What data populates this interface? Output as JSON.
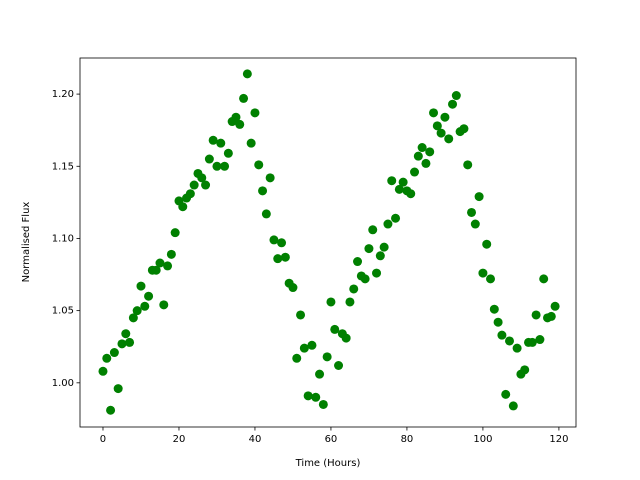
{
  "chart_data": {
    "type": "scatter",
    "x_label": "Time (Hours)",
    "y_label": "Normalised Flux",
    "color": "#008000",
    "xlim": [
      -6.05,
      124.5
    ],
    "ylim": [
      0.9694,
      1.225
    ],
    "xticks": [
      0,
      20,
      40,
      60,
      80,
      100,
      120
    ],
    "yticks": [
      {
        "value": 1.0,
        "label": "1.00"
      },
      {
        "value": 1.05,
        "label": "1.05"
      },
      {
        "value": 1.1,
        "label": "1.10"
      },
      {
        "value": 1.15,
        "label": "1.15"
      },
      {
        "value": 1.2,
        "label": "1.20"
      }
    ],
    "x": [
      0,
      1,
      2,
      3,
      4,
      5,
      6,
      7,
      8,
      9,
      10,
      11,
      12,
      13,
      14,
      15,
      16,
      17,
      18,
      19,
      20,
      21,
      22,
      23,
      24,
      25,
      26,
      27,
      28,
      29,
      30,
      31,
      32,
      33,
      34,
      35,
      36,
      37,
      38,
      39,
      40,
      41,
      42,
      43,
      44,
      45,
      46,
      47,
      48,
      49,
      50,
      51,
      52,
      53,
      54,
      55,
      56,
      57,
      58,
      59,
      60,
      61,
      62,
      63,
      64,
      65,
      66,
      67,
      68,
      69,
      70,
      71,
      72,
      73,
      74,
      75,
      76,
      77,
      78,
      79,
      80,
      81,
      82,
      83,
      84,
      85,
      86,
      87,
      88,
      89,
      90,
      91,
      92,
      93,
      94,
      95,
      96,
      97,
      98,
      99,
      100,
      101,
      102,
      103,
      104,
      105,
      106,
      107,
      108,
      109,
      110,
      111,
      112,
      113,
      114,
      115,
      116,
      117,
      118,
      119
    ],
    "values": [
      1.008,
      1.017,
      0.981,
      1.021,
      0.996,
      1.027,
      1.034,
      1.028,
      1.045,
      1.05,
      1.067,
      1.053,
      1.06,
      1.078,
      1.078,
      1.083,
      1.054,
      1.081,
      1.089,
      1.104,
      1.126,
      1.122,
      1.128,
      1.131,
      1.137,
      1.145,
      1.142,
      1.137,
      1.155,
      1.168,
      1.15,
      1.166,
      1.15,
      1.159,
      1.181,
      1.184,
      1.179,
      1.197,
      1.214,
      1.166,
      1.187,
      1.151,
      1.133,
      1.117,
      1.142,
      1.099,
      1.086,
      1.097,
      1.087,
      1.069,
      1.066,
      1.017,
      1.047,
      1.024,
      0.991,
      1.026,
      0.99,
      1.006,
      0.985,
      1.018,
      1.056,
      1.037,
      1.012,
      1.034,
      1.031,
      1.056,
      1.065,
      1.084,
      1.074,
      1.072,
      1.093,
      1.106,
      1.076,
      1.088,
      1.094,
      1.11,
      1.14,
      1.114,
      1.134,
      1.139,
      1.133,
      1.131,
      1.146,
      1.157,
      1.163,
      1.152,
      1.16,
      1.187,
      1.178,
      1.173,
      1.184,
      1.169,
      1.193,
      1.199,
      1.174,
      1.176,
      1.151,
      1.118,
      1.11,
      1.129,
      1.076,
      1.096,
      1.072,
      1.051,
      1.042,
      1.033,
      0.992,
      1.029,
      0.984,
      1.024,
      1.006,
      1.009,
      1.028,
      1.028,
      1.047,
      1.03,
      1.072,
      1.045,
      1.046,
      1.053
    ]
  }
}
